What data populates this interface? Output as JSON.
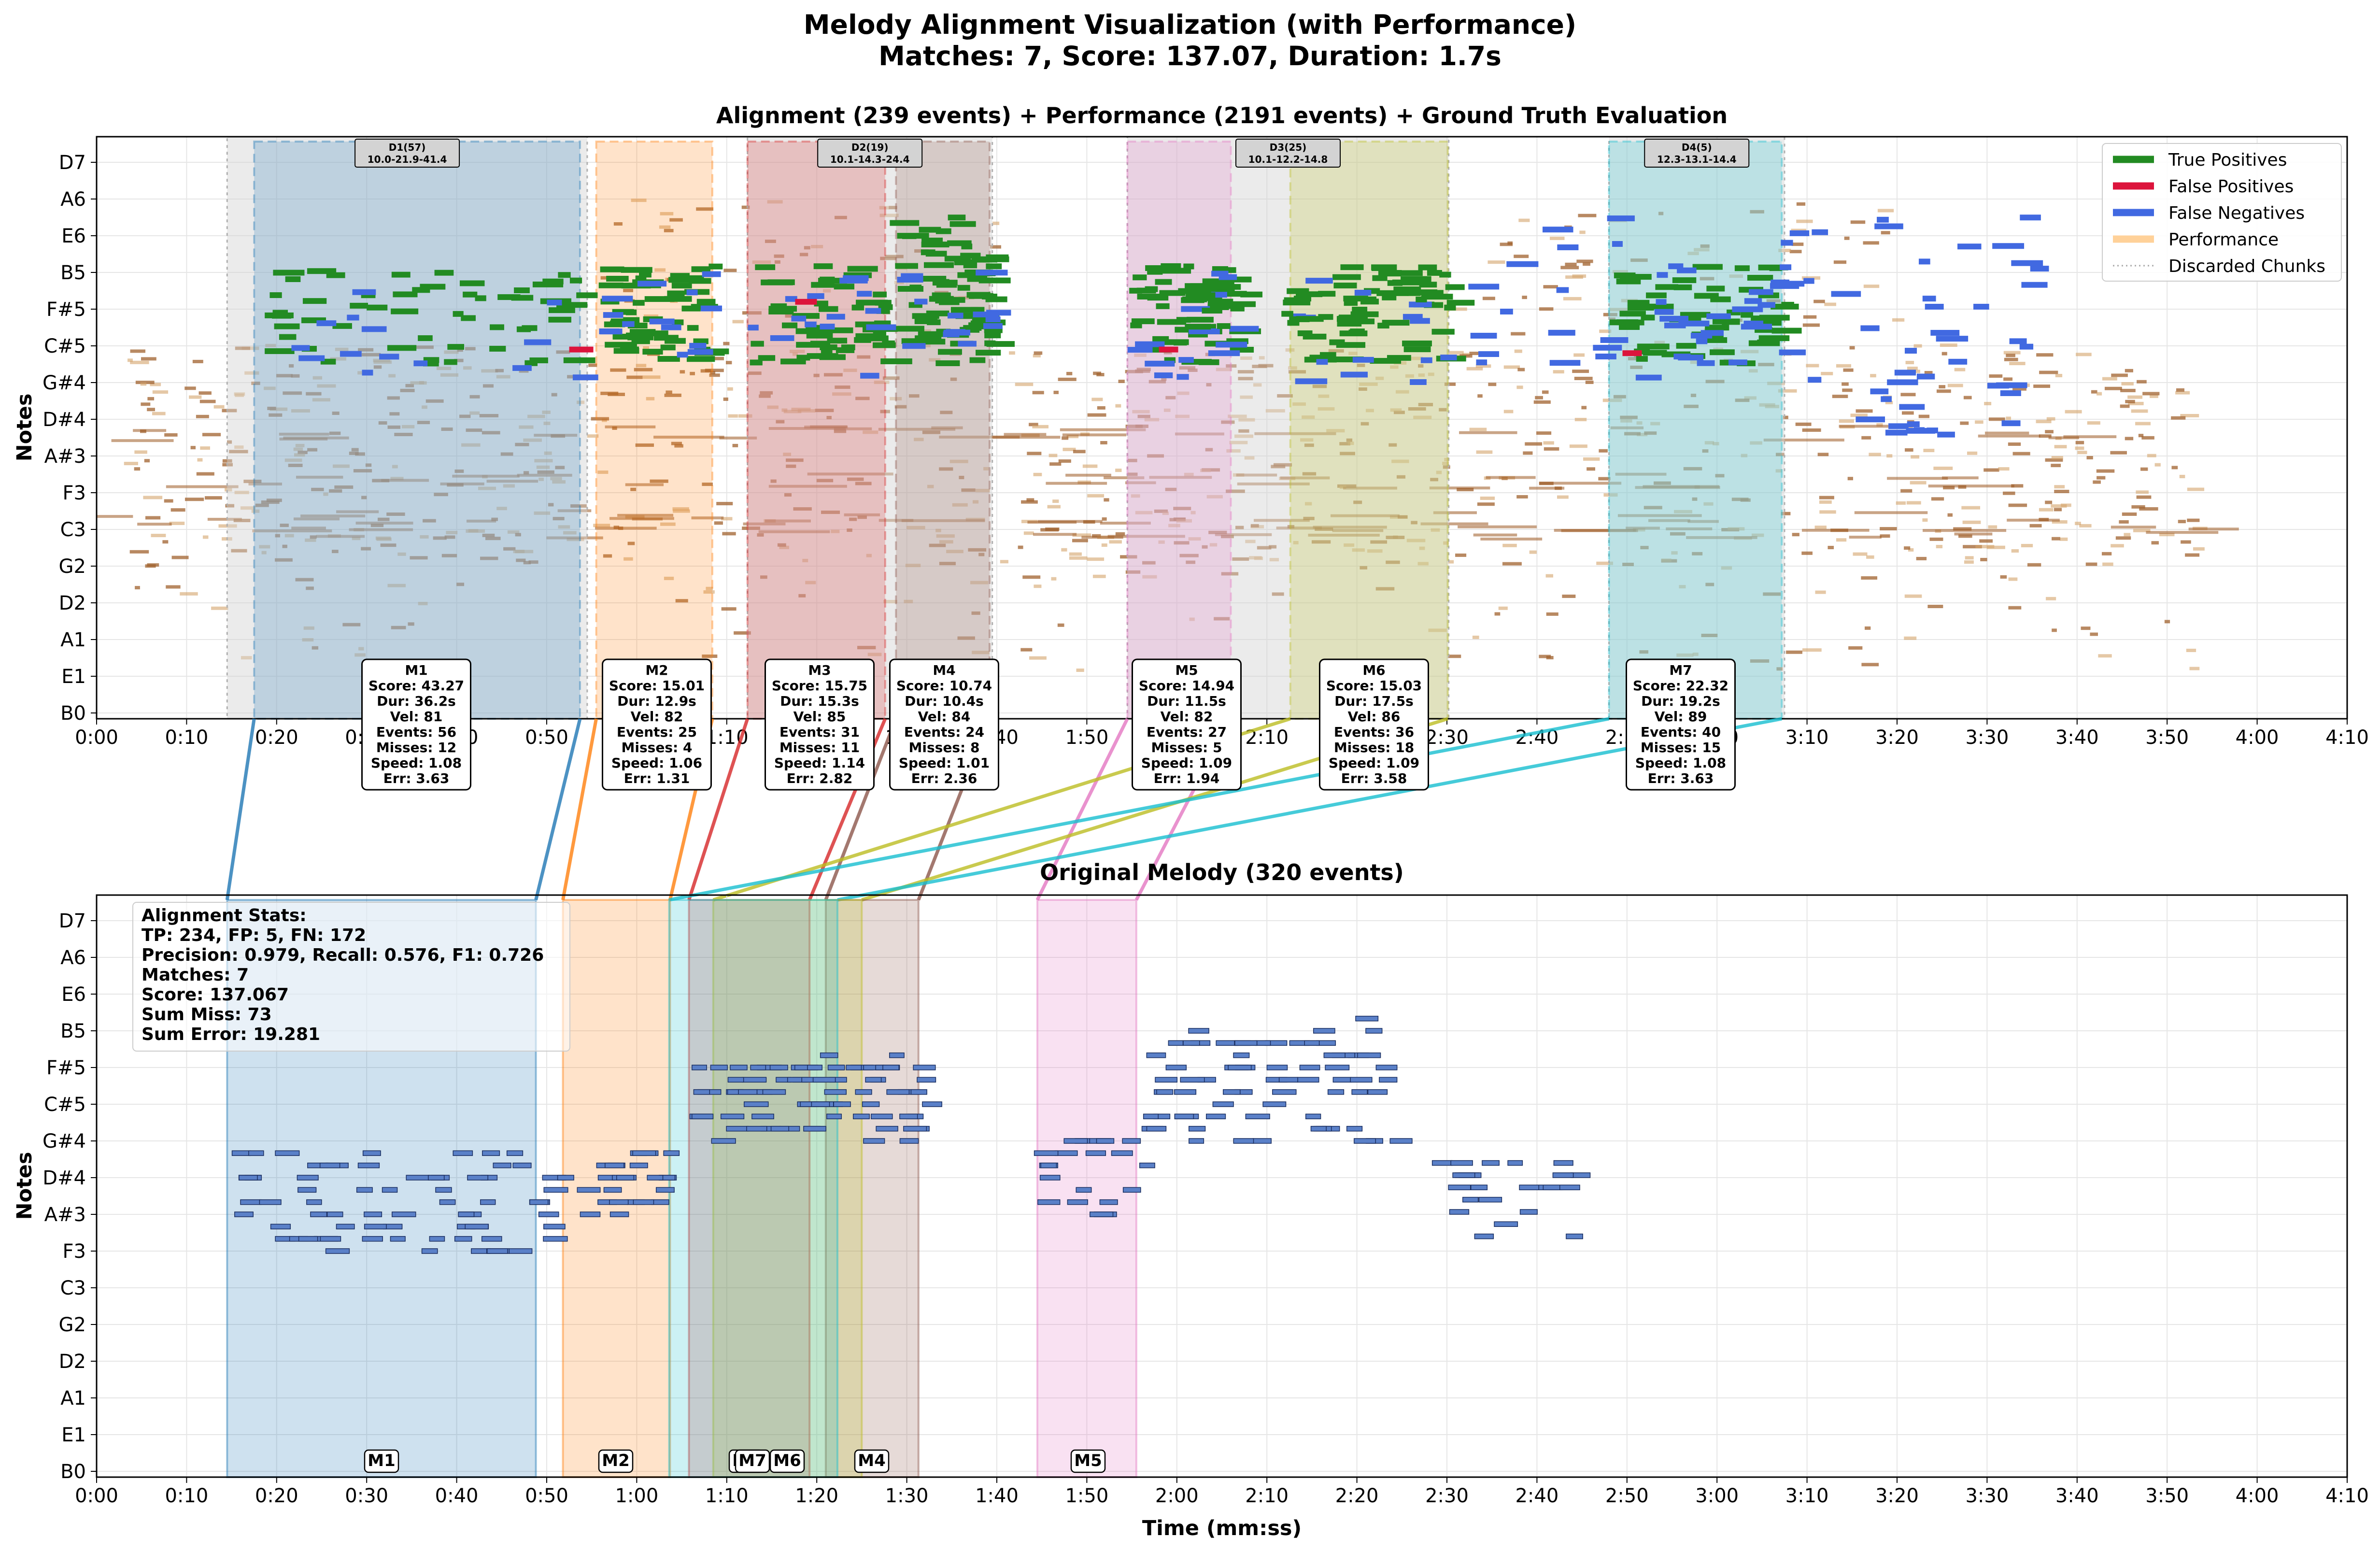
{
  "title_line1": "Melody Alignment Visualization (with Performance)",
  "title_line2": "Matches: 7, Score: 137.07, Duration: 1.7s",
  "chart_data": [
    {
      "type": "scatter",
      "title": "Alignment (239 events) + Performance (2191 events) + Ground Truth Evaluation",
      "ylabel": "Notes",
      "xlabel": "",
      "x_unit": "seconds",
      "xlim": [
        0,
        250
      ],
      "x_ticks": [
        "0:00",
        "0:10",
        "0:20",
        "0:30",
        "0:40",
        "0:50",
        "1:00",
        "1:10",
        "1:20",
        "1:30",
        "1:40",
        "1:50",
        "2:00",
        "2:10",
        "2:20",
        "2:30",
        "2:40",
        "2:50",
        "3:00",
        "3:10",
        "3:20",
        "3:30",
        "3:40",
        "3:50",
        "4:00",
        "4:10"
      ],
      "y_ticks": [
        "B0",
        "E1",
        "A1",
        "D2",
        "G2",
        "C3",
        "F3",
        "A#3",
        "D#4",
        "G#4",
        "C#5",
        "F#5",
        "B5",
        "E6",
        "A6",
        "D7"
      ],
      "grid": true,
      "legend_position": "top-right",
      "legend": [
        {
          "label": "True Positives",
          "color": "#228b22",
          "style": "solid"
        },
        {
          "label": "False Positives",
          "color": "#dc143c",
          "style": "solid"
        },
        {
          "label": "False Negatives",
          "color": "#4169e1",
          "style": "solid"
        },
        {
          "label": "Performance",
          "color": "#ffd199",
          "style": "solid"
        },
        {
          "label": "Discarded Chunks",
          "color": "#aaaaaa",
          "style": "dotted"
        }
      ],
      "discarded_chunks": [
        {
          "label": "D1(57)",
          "sub": "10.0-21.9-41.4",
          "start": 14.5,
          "end": 54.5
        },
        {
          "label": "D2(19)",
          "sub": "10.1-14.3-24.4",
          "start": 72.3,
          "end": 99.5
        },
        {
          "label": "D3(25)",
          "sub": "10.1-12.2-14.8",
          "start": 114.5,
          "end": 150.2
        },
        {
          "label": "D4(5)",
          "sub": "12.3-13.1-14.4",
          "start": 168.0,
          "end": 187.5
        }
      ],
      "matches": [
        {
          "label": "M1",
          "color": "#1f77b4",
          "start": 17.5,
          "end": 53.7,
          "score": "Score: 43.27",
          "dur": "Dur: 36.2s",
          "vel": "Vel: 81",
          "events": "Events: 56",
          "misses": "Misses: 12",
          "speed": "Speed: 1.08",
          "err": "Err: 3.63",
          "orig_start": 14.5,
          "orig_end": 48.8
        },
        {
          "label": "M2",
          "color": "#ff7f0e",
          "start": 55.5,
          "end": 68.4,
          "score": "Score: 15.01",
          "dur": "Dur: 12.9s",
          "vel": "Vel: 82",
          "events": "Events: 25",
          "misses": "Misses: 4",
          "speed": "Speed: 1.06",
          "err": "Err: 1.31",
          "orig_start": 51.8,
          "orig_end": 63.7
        },
        {
          "label": "M3",
          "color": "#d62728",
          "start": 72.3,
          "end": 87.6,
          "score": "Score: 15.75",
          "dur": "Dur: 15.3s",
          "vel": "Vel: 85",
          "events": "Events: 31",
          "misses": "Misses: 11",
          "speed": "Speed: 1.14",
          "err": "Err: 2.82",
          "orig_start": 65.8,
          "orig_end": 79.2
        },
        {
          "label": "M4",
          "color": "#8c564b",
          "start": 88.8,
          "end": 99.2,
          "score": "Score: 10.74",
          "dur": "Dur: 10.4s",
          "vel": "Vel: 84",
          "events": "Events: 24",
          "misses": "Misses: 8",
          "speed": "Speed: 1.01",
          "err": "Err: 2.36",
          "orig_start": 81.0,
          "orig_end": 91.3
        },
        {
          "label": "M5",
          "color": "#e377c2",
          "start": 114.5,
          "end": 126.0,
          "score": "Score: 14.94",
          "dur": "Dur: 11.5s",
          "vel": "Vel: 82",
          "events": "Events: 27",
          "misses": "Misses: 5",
          "speed": "Speed: 1.09",
          "err": "Err: 1.94",
          "orig_start": 104.5,
          "orig_end": 115.5
        },
        {
          "label": "M6",
          "color": "#bcbd22",
          "start": 132.6,
          "end": 150.1,
          "score": "Score: 15.03",
          "dur": "Dur: 17.5s",
          "vel": "Vel: 86",
          "events": "Events: 36",
          "misses": "Misses: 18",
          "speed": "Speed: 1.09",
          "err": "Err: 3.58",
          "orig_start": 68.5,
          "orig_end": 85.0
        },
        {
          "label": "M7",
          "color": "#17becf",
          "start": 168.0,
          "end": 187.2,
          "score": "Score: 22.32",
          "dur": "Dur: 19.2s",
          "vel": "Vel: 89",
          "events": "Events: 40",
          "misses": "Misses: 15",
          "speed": "Speed: 1.08",
          "err": "Err: 3.63",
          "orig_start": 63.6,
          "orig_end": 82.3
        }
      ]
    },
    {
      "type": "scatter",
      "title": "Original Melody (320 events)",
      "xlabel": "Time (mm:ss)",
      "ylabel": "Notes",
      "x_unit": "seconds",
      "xlim": [
        0,
        250
      ],
      "x_ticks": [
        "0:00",
        "0:10",
        "0:20",
        "0:30",
        "0:40",
        "0:50",
        "1:00",
        "1:10",
        "1:20",
        "1:30",
        "1:40",
        "1:50",
        "2:00",
        "2:10",
        "2:20",
        "2:30",
        "2:40",
        "2:50",
        "3:00",
        "3:10",
        "3:20",
        "3:30",
        "3:40",
        "3:50",
        "4:00",
        "4:10"
      ],
      "y_ticks": [
        "B0",
        "E1",
        "A1",
        "D2",
        "G2",
        "C3",
        "F3",
        "A#3",
        "D#4",
        "G#4",
        "C#5",
        "F#5",
        "B5",
        "E6",
        "A6",
        "D7"
      ],
      "grid": true,
      "stats_lines": [
        "Alignment Stats:",
        "TP: 234, FP: 5, FN: 172",
        "Precision: 0.979, Recall: 0.576, F1: 0.726",
        "Matches: 7",
        "Score: 137.067",
        "Sum Miss: 73",
        "Sum Error: 19.281"
      ],
      "bottom_labels": [
        "M1",
        "M2",
        "M3",
        "M7",
        "M6",
        "M4",
        "M5"
      ]
    }
  ]
}
